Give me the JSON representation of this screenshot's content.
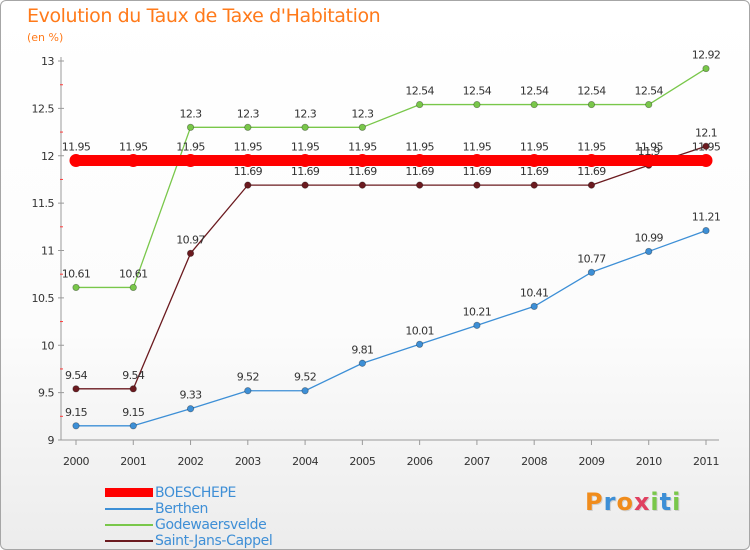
{
  "chart_data": {
    "type": "line",
    "title": "Evolution du Taux de Taxe d'Habitation",
    "subtitle": "(en %)",
    "categories": [
      "2000",
      "2001",
      "2002",
      "2003",
      "2004",
      "2005",
      "2006",
      "2007",
      "2008",
      "2009",
      "2010",
      "2011"
    ],
    "ylim": [
      9,
      13
    ],
    "yticks": [
      "9",
      "9.5",
      "10",
      "10.5",
      "11",
      "11.5",
      "12",
      "12.5",
      "13"
    ],
    "grid": false,
    "legend_position": "bottom-left",
    "series": [
      {
        "name": "BOESCHEPE",
        "color": "#ff0000",
        "values": [
          11.95,
          11.95,
          11.95,
          11.95,
          11.95,
          11.95,
          11.95,
          11.95,
          11.95,
          11.95,
          11.95,
          11.95
        ],
        "labels": [
          "11.95",
          "11.95",
          "11.95",
          "11.95",
          "11.95",
          "11.95",
          "11.95",
          "11.95",
          "11.95",
          "11.95",
          "11.95",
          "11.95"
        ]
      },
      {
        "name": "Berthen",
        "color": "#3d8fd6",
        "values": [
          9.15,
          9.15,
          9.33,
          9.52,
          9.52,
          9.81,
          10.01,
          10.21,
          10.41,
          10.77,
          10.99,
          11.21
        ],
        "labels": [
          "9.15",
          "9.15",
          "9.33",
          "9.52",
          "9.52",
          "9.81",
          "10.01",
          "10.21",
          "10.41",
          "10.77",
          "10.99",
          "11.21"
        ]
      },
      {
        "name": "Godewaersvelde",
        "color": "#79c74a",
        "values": [
          10.61,
          10.61,
          12.3,
          12.3,
          12.3,
          12.3,
          12.54,
          12.54,
          12.54,
          12.54,
          12.54,
          12.92
        ],
        "labels": [
          "10.61",
          "10.61",
          "12.3",
          "12.3",
          "12.3",
          "12.3",
          "12.54",
          "12.54",
          "12.54",
          "12.54",
          "12.54",
          "12.92"
        ]
      },
      {
        "name": "Saint-Jans-Cappel",
        "color": "#6b1a1f",
        "values": [
          9.54,
          9.54,
          10.97,
          11.69,
          11.69,
          11.69,
          11.69,
          11.69,
          11.69,
          11.69,
          11.9,
          12.1
        ],
        "labels": [
          "9.54",
          "9.54",
          "10.97",
          "11.69",
          "11.69",
          "11.69",
          "11.69",
          "11.69",
          "11.69",
          "11.69",
          "11.9",
          "12.1"
        ]
      }
    ]
  },
  "brand": {
    "text": "Proxiti",
    "letters": [
      "P",
      "r",
      "o",
      "x",
      "i",
      "t",
      "i"
    ],
    "colors": [
      "#f08c1c",
      "#3d8fd6",
      "#f08c1c",
      "#e04060",
      "#79c74a",
      "#3d8fd6",
      "#79c74a"
    ]
  }
}
